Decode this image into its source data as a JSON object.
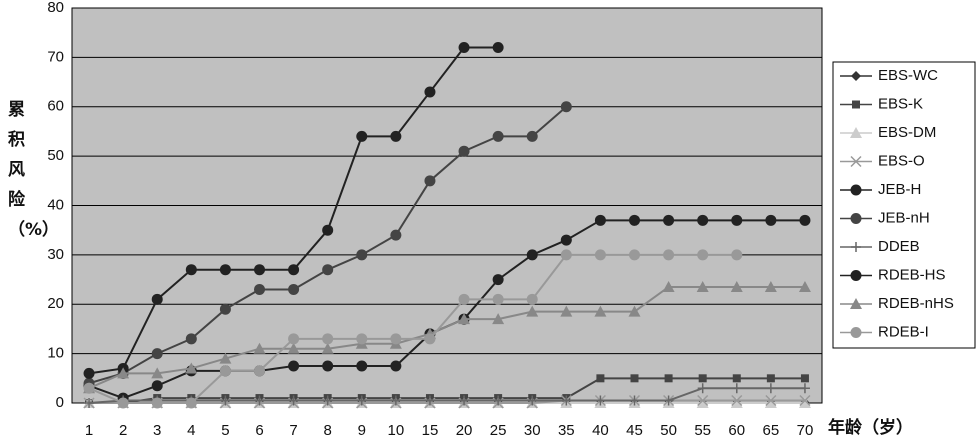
{
  "chart_data": {
    "type": "line",
    "y_label": "累积风险（%）",
    "x_label": "年龄（岁）",
    "categories": [
      "1",
      "2",
      "3",
      "4",
      "5",
      "6",
      "7",
      "8",
      "9",
      "10",
      "15",
      "20",
      "25",
      "30",
      "35",
      "40",
      "45",
      "50",
      "55",
      "60",
      "65",
      "70"
    ],
    "ylim": [
      0,
      80
    ],
    "yticks": [
      0,
      10,
      20,
      30,
      40,
      50,
      60,
      70,
      80
    ],
    "grid": true,
    "series": [
      {
        "name": "EBS-WC",
        "color": "#333333",
        "marker": "diamond",
        "values": [
          0,
          0,
          0,
          0,
          0,
          0,
          0,
          0,
          0,
          0,
          0,
          0,
          0,
          0,
          0,
          0,
          0,
          0,
          0,
          0,
          0,
          0
        ]
      },
      {
        "name": "EBS-K",
        "color": "#444444",
        "marker": "square",
        "values": [
          0,
          0,
          1,
          1,
          1,
          1,
          1,
          1,
          1,
          1,
          1,
          1,
          1,
          1,
          1,
          5,
          5,
          5,
          5,
          5,
          5,
          5
        ]
      },
      {
        "name": "EBS-DM",
        "color": "#cccccc",
        "marker": "triangle",
        "values": [
          0,
          0,
          0,
          0,
          0,
          0,
          0,
          0,
          0,
          0,
          0,
          0,
          0,
          0,
          0,
          0,
          0,
          0,
          0,
          0,
          0,
          0
        ]
      },
      {
        "name": "EBS-O",
        "color": "#999999",
        "marker": "x",
        "values": [
          0,
          0,
          0,
          0,
          0,
          0,
          0,
          0,
          0,
          0,
          0,
          0,
          0,
          0,
          0.5,
          0.5,
          0.5,
          0.5,
          0.5,
          0.5,
          0.5,
          0.5
        ]
      },
      {
        "name": "JEB-H",
        "color": "#222222",
        "marker": "circle",
        "values": [
          3.5,
          1,
          3.5,
          6.5,
          6.5,
          6.5,
          7.5,
          7.5,
          7.5,
          7.5,
          14,
          17,
          25,
          30,
          33,
          37,
          37,
          37,
          37,
          37,
          37,
          37
        ]
      },
      {
        "name": "JEB-nH",
        "color": "#444444",
        "marker": "circle",
        "values": [
          4,
          6,
          10,
          13,
          19,
          23,
          23,
          27,
          30,
          34,
          45,
          51,
          54,
          54,
          60,
          null,
          null,
          null,
          null,
          null,
          null,
          null
        ]
      },
      {
        "name": "DDEB",
        "color": "#666666",
        "marker": "plus",
        "values": [
          0,
          0.5,
          0.5,
          0.5,
          0.5,
          0.5,
          0.5,
          0.5,
          0.5,
          0.5,
          0.5,
          0.5,
          0.5,
          0.5,
          0.5,
          0.5,
          0.5,
          0.5,
          3,
          3,
          3,
          3
        ]
      },
      {
        "name": "RDEB-HS",
        "color": "#222222",
        "marker": "circle",
        "values": [
          6,
          7,
          21,
          27,
          27,
          27,
          27,
          35,
          54,
          54,
          63,
          72,
          72,
          null,
          null,
          null,
          null,
          null,
          null,
          null,
          null,
          null
        ]
      },
      {
        "name": "RDEB-nHS",
        "color": "#888888",
        "marker": "triangle",
        "values": [
          3,
          6,
          6,
          7,
          9,
          11,
          11,
          11,
          12,
          12,
          14,
          17,
          17,
          18.5,
          18.5,
          18.5,
          18.5,
          23.5,
          23.5,
          23.5,
          23.5,
          23.5
        ]
      },
      {
        "name": "RDEB-I",
        "color": "#999999",
        "marker": "circle",
        "values": [
          3,
          0,
          0,
          0,
          6.5,
          6.5,
          13,
          13,
          13,
          13,
          13,
          21,
          21,
          21,
          30,
          30,
          30,
          30,
          30,
          30,
          null,
          null
        ]
      }
    ]
  }
}
